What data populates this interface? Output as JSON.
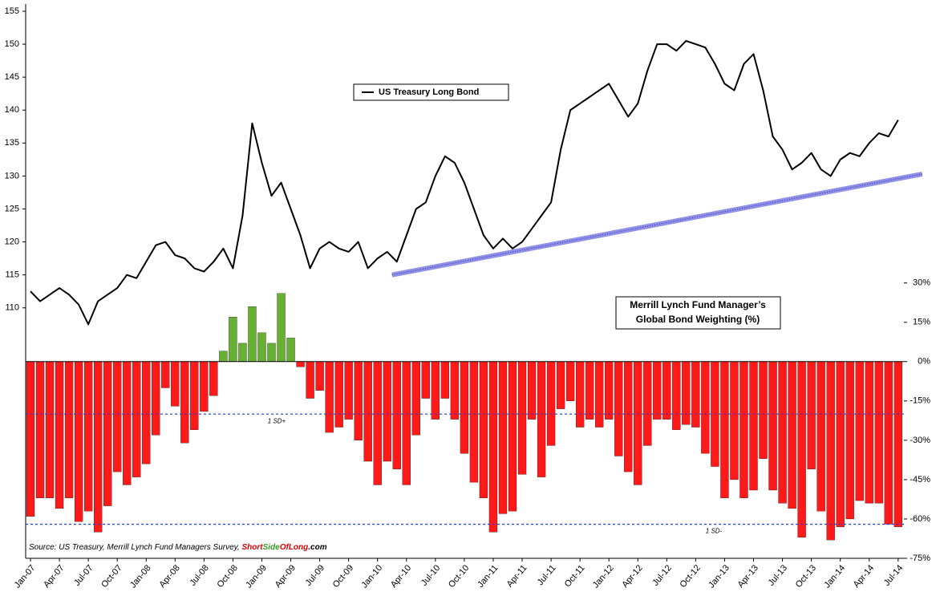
{
  "chart_data": {
    "type": "bar-line",
    "categories": [
      "Jan-07",
      null,
      null,
      "Apr-07",
      null,
      null,
      "Jul-07",
      null,
      null,
      "Oct-07",
      null,
      null,
      "Jan-08",
      null,
      null,
      "Apr-08",
      null,
      null,
      "Jul-08",
      null,
      null,
      "Oct-08",
      null,
      null,
      "Jan-09",
      null,
      null,
      "Apr-09",
      null,
      null,
      "Jul-09",
      null,
      null,
      "Oct-09",
      null,
      null,
      "Jan-10",
      null,
      null,
      "Apr-10",
      null,
      null,
      "Jul-10",
      null,
      null,
      "Oct-10",
      null,
      null,
      "Jan-11",
      null,
      null,
      "Apr-11",
      null,
      null,
      "Jul-11",
      null,
      null,
      "Oct-11",
      null,
      null,
      "Jan-12",
      null,
      null,
      "Apr-12",
      null,
      null,
      "Jul-12",
      null,
      null,
      "Oct-12",
      null,
      null,
      "Jan-13",
      null,
      null,
      "Apr-13",
      null,
      null,
      "Jul-13",
      null,
      null,
      "Oct-13",
      null,
      null,
      "Jan-14",
      null,
      null,
      "Apr-14",
      null,
      null,
      "Jul-14"
    ],
    "series": [
      {
        "name": "US Treasury Long Bond",
        "type": "line",
        "axis": "y",
        "color": "#000000",
        "values": [
          112.5,
          111,
          112,
          113,
          112,
          110.5,
          107.5,
          111,
          112,
          113,
          115,
          114.5,
          117,
          119.5,
          120,
          118,
          117.5,
          116,
          115.5,
          117,
          119,
          116,
          124,
          138,
          132,
          127,
          129,
          125,
          121,
          116,
          119,
          120,
          119,
          118.5,
          120,
          116,
          117.5,
          118.5,
          117,
          121,
          125,
          126,
          130,
          133,
          132,
          129,
          125,
          121,
          119,
          120.5,
          119,
          120,
          122,
          124,
          126,
          134,
          140,
          141,
          142,
          143,
          144,
          141.5,
          139,
          141,
          146,
          150,
          150,
          149,
          150.5,
          150,
          149.5,
          147,
          144,
          143,
          147,
          148.5,
          143,
          136,
          134,
          131,
          132,
          133.5,
          131,
          130,
          132.5,
          133.5,
          133,
          135,
          136.5,
          136,
          138.5
        ]
      },
      {
        "type": "bar",
        "axis": "y2",
        "color": "#ff1a1a",
        "positive_color": "#66b032",
        "values": [
          -59,
          -52,
          -52,
          -56,
          -52,
          -61,
          -57,
          -65,
          -55,
          -42,
          -47,
          -44,
          -39,
          -28,
          -10,
          -17,
          -31,
          -26,
          -19,
          -13,
          4,
          17,
          7,
          21,
          11,
          7,
          26,
          9,
          -2,
          -14,
          -11,
          -27,
          -25,
          -22,
          -30,
          -38,
          -47,
          -38,
          -41,
          -47,
          -28,
          -14,
          -22,
          -14,
          -22,
          -35,
          -46,
          -52,
          -65,
          -58,
          -57,
          -43,
          -22,
          -44,
          -32,
          -18,
          -15,
          -25,
          -22,
          -25,
          -22,
          -36,
          -42,
          -47,
          -32,
          -22,
          -22,
          -26,
          -24,
          -25,
          -35,
          -40,
          -52,
          -45,
          -52,
          -49,
          -37,
          -49,
          -54,
          -56,
          -67,
          -41,
          -57,
          -68,
          -63,
          -60,
          -53,
          -54,
          -54,
          -62,
          -63
        ]
      }
    ],
    "ylim": [
      72,
      155
    ],
    "yticks": [
      110,
      115,
      120,
      125,
      130,
      135,
      140,
      145,
      150,
      155
    ],
    "y2lim": [
      -75,
      133.6
    ],
    "y2ticks": [
      {
        "value": 30,
        "label": "30%"
      },
      {
        "value": 15,
        "label": "15%"
      },
      {
        "value": 0,
        "label": "0%"
      },
      {
        "value": -15,
        "label": "-15%"
      },
      {
        "value": -30,
        "label": "-30%"
      },
      {
        "value": -45,
        "label": "-45%"
      },
      {
        "value": -60,
        "label": "-60%"
      },
      {
        "value": -75,
        "label": "-75%"
      }
    ],
    "reference_lines": [
      {
        "value": -20,
        "label": "1 SD+",
        "axis": "y2",
        "color": "#1f3fd0"
      },
      {
        "value": -62,
        "label": "1 SD-",
        "axis": "y2",
        "color": "#1f3fd0"
      }
    ],
    "trendline": {
      "color": "#8f8fe8",
      "from": {
        "index": 37.5,
        "value": 115
      },
      "to": {
        "index": 92.5,
        "value": 130.3
      }
    },
    "annotation": [
      "Merrill Lynch Fund Manager’s",
      "Global Bond Weighting (%)"
    ],
    "source": [
      "Source: US Treasury, Merrill Lynch Fund Managers Survey, ",
      "Short",
      "Side",
      "Of",
      "Long",
      ".com"
    ]
  }
}
